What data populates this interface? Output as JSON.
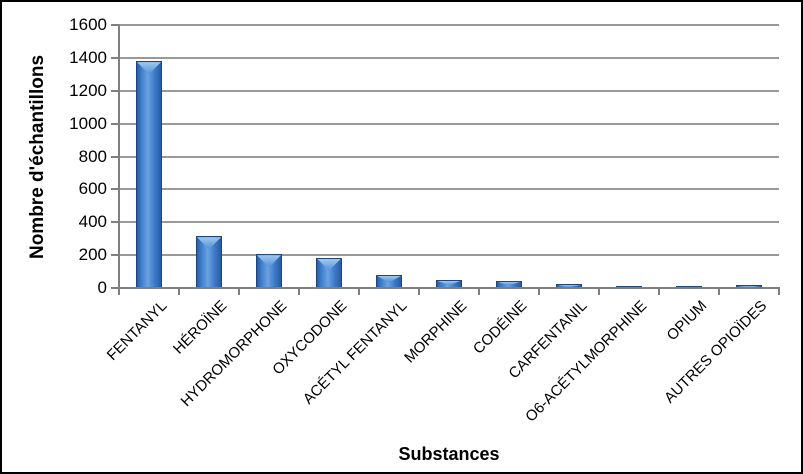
{
  "chart_data": {
    "type": "bar",
    "title": "",
    "xlabel": "Substances",
    "ylabel": "Nombre d'échantillons",
    "categories": [
      "FENTANYL",
      "HÉROÏNE",
      "HYDROMORPHONE",
      "OXYCODONE",
      "ACÉTYL FENTANYL",
      "MORPHINE",
      "CODÉINE",
      "CARFENTANIL",
      "O6-ACÉTYLMORPHINE",
      "OPIUM",
      "AUTRES OPIOÏDES"
    ],
    "values": [
      1380,
      315,
      205,
      185,
      80,
      50,
      45,
      25,
      15,
      10,
      20
    ],
    "ylim": [
      0,
      1600
    ],
    "ytick_step": 200,
    "ytick_labels": [
      "0",
      "200",
      "400",
      "600",
      "800",
      "1000",
      "1200",
      "1400",
      "1600"
    ],
    "grid": "horizontal",
    "legend": "none",
    "colors": {
      "bar_main": "#3a79c8",
      "bar_edge": "#2a5c9e",
      "bar_dark_edge": "#1c477e",
      "bar_highlight": "#6ba2e0",
      "bar_cap_light": "#9ec9f0",
      "bar_cap_mid": "#5590d8",
      "gridline": "#989898",
      "axis": "#7f7f7f",
      "text": "#000000",
      "frame_border": "#000000",
      "background": "#ffffff"
    }
  }
}
